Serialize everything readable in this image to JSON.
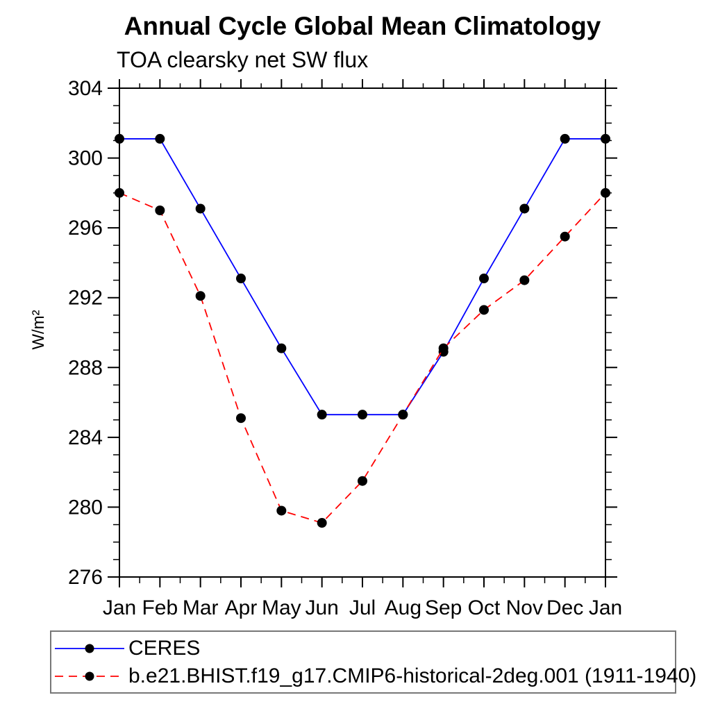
{
  "chart_data": {
    "type": "line",
    "title": "Annual Cycle Global Mean Climatology",
    "subtitle": "TOA clearsky net SW flux",
    "ylabel": "W/m²",
    "xlabel": "",
    "categories": [
      "Jan",
      "Feb",
      "Mar",
      "Apr",
      "May",
      "Jun",
      "Jul",
      "Aug",
      "Sep",
      "Oct",
      "Nov",
      "Dec",
      "Jan"
    ],
    "ylim": [
      276,
      304
    ],
    "ytick_major": 4,
    "ytick_minor": 1,
    "yticks": [
      276,
      280,
      284,
      288,
      292,
      296,
      300,
      304
    ],
    "grid": false,
    "legend_position": "bottom-left",
    "axis_color": "#000000",
    "marker_color": "#000000",
    "series": [
      {
        "name": "CERES",
        "color": "#0000ff",
        "line_style": "solid",
        "marker": "filled-circle",
        "values": [
          301.1,
          301.1,
          297.1,
          293.1,
          289.1,
          285.3,
          285.3,
          285.3,
          288.9,
          293.1,
          297.1,
          301.1,
          301.1
        ]
      },
      {
        "name": "b.e21.BHIST.f19_g17.CMIP6-historical-2deg.001 (1911-1940)",
        "color": "#ff0000",
        "line_style": "dashed",
        "marker": "filled-circle",
        "values": [
          298.0,
          297.0,
          292.1,
          285.1,
          279.8,
          279.1,
          281.5,
          285.3,
          289.1,
          291.3,
          293.0,
          295.5,
          298.0
        ]
      }
    ]
  }
}
